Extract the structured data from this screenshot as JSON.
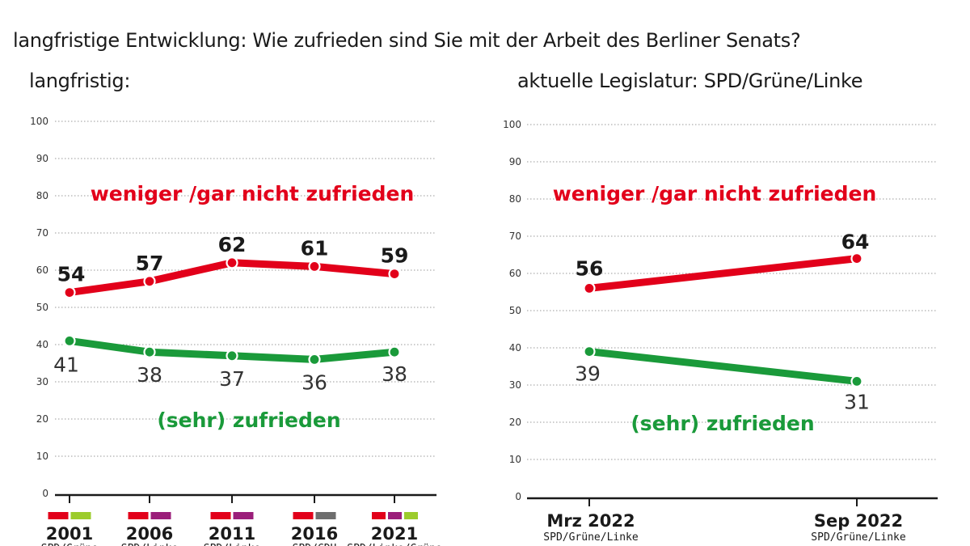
{
  "title": "langfristige Entwicklung: Wie zufrieden sind Sie mit der Arbeit des Berliner Senats?",
  "colors": {
    "red": "#e2001a",
    "green": "#1a9a3a",
    "SPD": "#e2001a",
    "Grüne": "#9ccc2c",
    "Linke": "#9b1e7a",
    "CDU": "#6e6e6e"
  },
  "chart_data": [
    {
      "type": "line",
      "title": "langfristig:",
      "categories": [
        "2001",
        "2006",
        "2011",
        "2016",
        "2021"
      ],
      "coalitions": [
        "SPD/Grüne",
        "SPD/Linke",
        "SPD/Linke",
        "SPD/CDU",
        "SPD/Linke/Grüne"
      ],
      "coalition_parties": [
        [
          "SPD",
          "Grüne"
        ],
        [
          "SPD",
          "Linke"
        ],
        [
          "SPD",
          "Linke"
        ],
        [
          "SPD",
          "CDU"
        ],
        [
          "SPD",
          "Linke",
          "Grüne"
        ]
      ],
      "yticks": [
        0,
        10,
        20,
        30,
        40,
        50,
        60,
        70,
        80,
        90,
        100
      ],
      "ylim": [
        0,
        100
      ],
      "series": [
        {
          "name": "weniger /gar nicht zufrieden",
          "color": "#e2001a",
          "values": [
            54,
            57,
            62,
            61,
            59
          ]
        },
        {
          "name": "(sehr) zufrieden",
          "color": "#1a9a3a",
          "values": [
            41,
            38,
            37,
            36,
            38
          ]
        }
      ]
    },
    {
      "type": "line",
      "title": "aktuelle Legislatur: SPD/Grüne/Linke",
      "categories": [
        "Mrz 2022",
        "Sep 2022"
      ],
      "coalitions": [
        "SPD/Grüne/Linke",
        "SPD/Grüne/Linke"
      ],
      "yticks": [
        0,
        10,
        20,
        30,
        40,
        50,
        60,
        70,
        80,
        90,
        100
      ],
      "ylim": [
        0,
        100
      ],
      "series": [
        {
          "name": "weniger /gar nicht zufrieden",
          "color": "#e2001a",
          "values": [
            56,
            64
          ]
        },
        {
          "name": "(sehr) zufrieden",
          "color": "#1a9a3a",
          "values": [
            39,
            31
          ]
        }
      ]
    }
  ]
}
